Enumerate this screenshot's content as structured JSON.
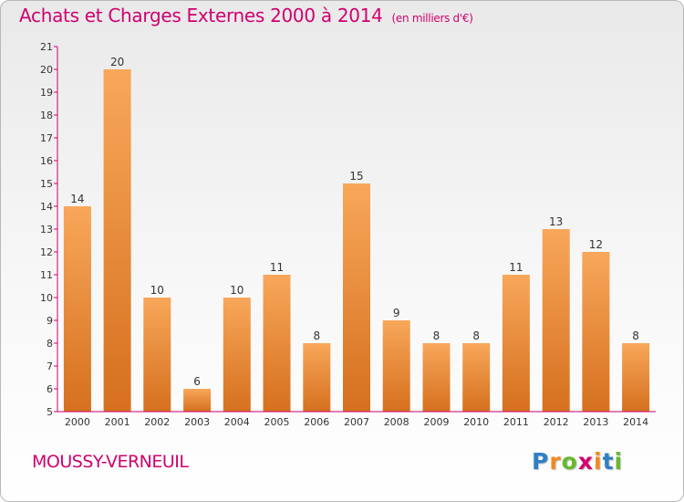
{
  "title": "Achats et Charges Externes 2000 à 2014",
  "subtitle": "(en milliers d'€)",
  "commune": "MOUSSY-VERNEUIL",
  "logo": {
    "letters": [
      "P",
      "r",
      "o",
      "x",
      "i",
      "t",
      "i"
    ],
    "colors": [
      "#2e7fc6",
      "#f08a1c",
      "#68b82e",
      "#d0006f",
      "#f08a1c",
      "#2e7fc6",
      "#68b82e"
    ]
  },
  "chart_data": {
    "type": "bar",
    "title": "Achats et Charges Externes 2000 à 2014",
    "subtitle": "(en milliers d'€)",
    "categories": [
      "2000",
      "2001",
      "2002",
      "2003",
      "2004",
      "2005",
      "2006",
      "2007",
      "2008",
      "2009",
      "2010",
      "2011",
      "2012",
      "2013",
      "2014"
    ],
    "values": [
      14,
      20,
      10,
      6,
      10,
      11,
      8,
      15,
      9,
      8,
      8,
      11,
      13,
      12,
      8
    ],
    "ylim": [
      5,
      21
    ],
    "yticks": [
      "5",
      "6",
      "7",
      "8",
      "9",
      "10",
      "11",
      "12",
      "13",
      "14",
      "15",
      "16",
      "17",
      "18",
      "19",
      "20",
      "21"
    ],
    "grid": false,
    "bar_color_top": "#f8a75a",
    "bar_color_bottom": "#d5701e",
    "axis_color": "#d0006f"
  }
}
